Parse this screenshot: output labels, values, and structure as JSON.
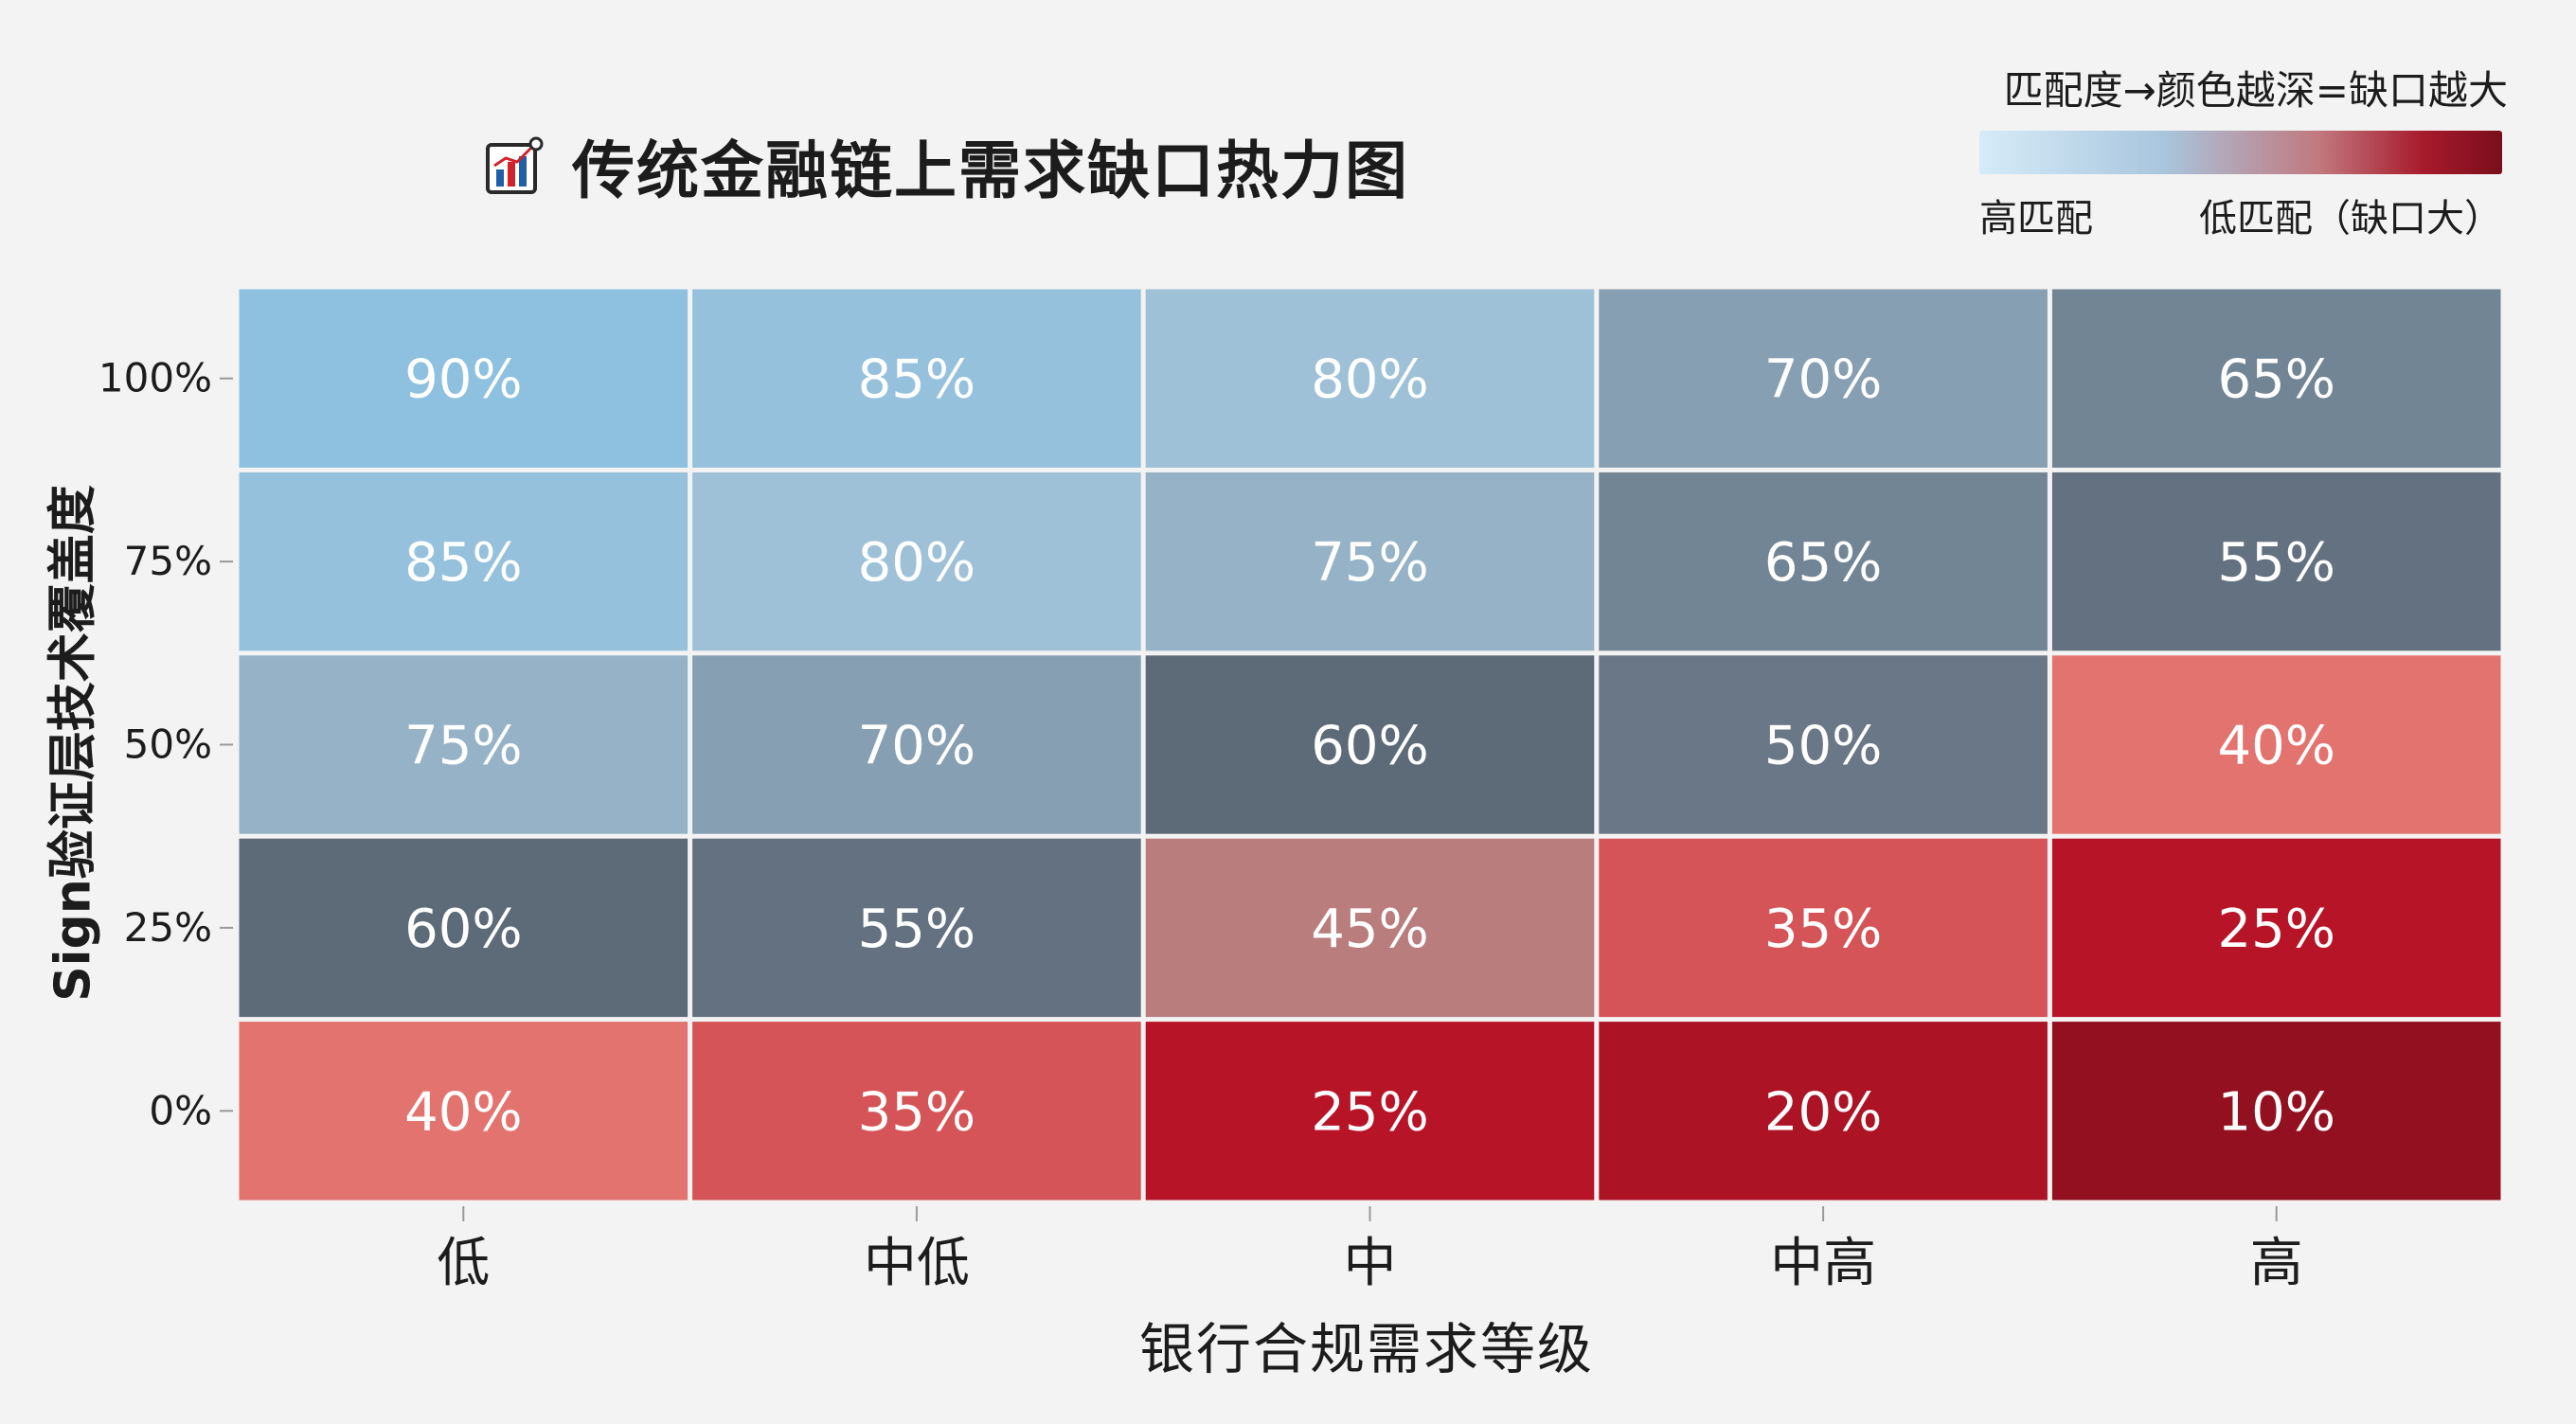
{
  "legend": {
    "title": "匹配度→颜色越深=缺口越大",
    "low_label": "高匹配",
    "high_label": "低匹配（缺口大）"
  },
  "chart_data": {
    "type": "heatmap",
    "title": "传统金融链上需求缺口热力图",
    "xlabel": "银行合规需求等级",
    "ylabel": "Sign验证层技术覆盖度",
    "x_categories": [
      "低",
      "中低",
      "中",
      "中高",
      "高"
    ],
    "y_categories": [
      "100%",
      "75%",
      "50%",
      "25%",
      "0%"
    ],
    "values": [
      [
        90,
        85,
        80,
        70,
        65
      ],
      [
        85,
        80,
        75,
        65,
        55
      ],
      [
        75,
        70,
        60,
        50,
        40
      ],
      [
        60,
        55,
        45,
        35,
        25
      ],
      [
        40,
        35,
        25,
        20,
        10
      ]
    ],
    "value_suffix": "%",
    "colors": {
      "high_match": "#7cbfe6",
      "mid_light": "#9fc1d8",
      "mid_dark": "#5d6b79",
      "low_mid": "#e98078",
      "low_match": "#7a0e1c"
    }
  }
}
